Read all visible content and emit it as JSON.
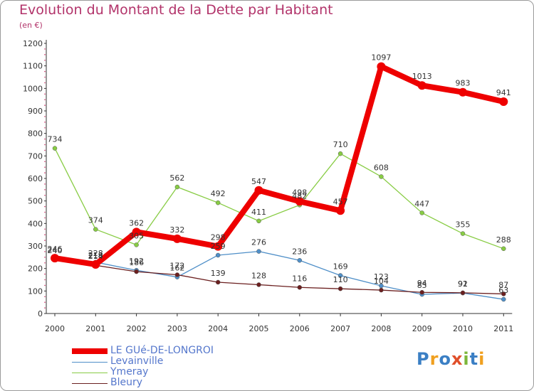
{
  "title": "Evolution du Montant de la Dette par Habitant",
  "subtitle": "(en €)",
  "logo": "Proxiti",
  "chart_data": {
    "type": "line",
    "x": [
      "2000",
      "2001",
      "2002",
      "2003",
      "2004",
      "2005",
      "2006",
      "2007",
      "2008",
      "2009",
      "2010",
      "2011"
    ],
    "ylim": [
      0,
      1200
    ],
    "yticks": [
      0,
      100,
      200,
      300,
      400,
      500,
      600,
      700,
      800,
      900,
      1000,
      1100,
      1200
    ],
    "grid": false,
    "legend": "bottom-left",
    "series": [
      {
        "name": "LE GUé-DE-LONGROI",
        "color": "#ee0000",
        "width": "thick",
        "values": [
          246,
          218,
          362,
          332,
          298,
          547,
          498,
          457,
          1097,
          1013,
          983,
          941
        ]
      },
      {
        "name": "Levainville",
        "color": "#4f8fc8",
        "width": "thin",
        "values": [
          240,
          228,
          192,
          162,
          259,
          276,
          236,
          169,
          123,
          85,
          91,
          63
        ]
      },
      {
        "name": "Ymeray",
        "color": "#88cc44",
        "width": "thin",
        "values": [
          734,
          374,
          305,
          562,
          492,
          411,
          482,
          710,
          608,
          447,
          355,
          288
        ]
      },
      {
        "name": "Bleury",
        "color": "#6b1f1f",
        "width": "thin",
        "values": [
          240,
          214,
          186,
          172,
          139,
          128,
          116,
          110,
          104,
          94,
          92,
          87
        ]
      }
    ],
    "labeled_values": [
      [
        246,
        218,
        362,
        332,
        298,
        547,
        498,
        457,
        1097,
        1013,
        983,
        941
      ],
      [
        240,
        228,
        192,
        162,
        259,
        276,
        236,
        169,
        123,
        85,
        91,
        63
      ],
      [
        734,
        374,
        305,
        562,
        492,
        411,
        482,
        710,
        608,
        447,
        355,
        288
      ],
      [
        240,
        214,
        186,
        172,
        139,
        128,
        116,
        110,
        104,
        94,
        92,
        87
      ]
    ]
  }
}
